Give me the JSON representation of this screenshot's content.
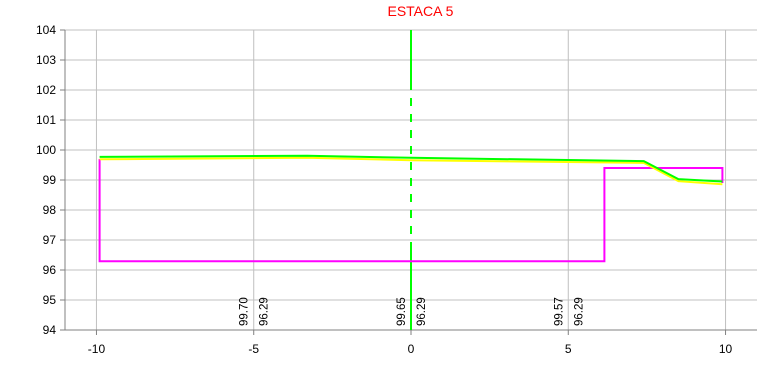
{
  "chart_data": {
    "type": "line",
    "title": "ESTACA 5",
    "title_color": "#ff0000",
    "xlim": [
      -11,
      11
    ],
    "ylim": [
      94,
      104
    ],
    "x_ticks": [
      -10,
      -5,
      0,
      5,
      10
    ],
    "x_tick_labels": [
      "-10",
      "-5",
      "0",
      "5",
      "10"
    ],
    "y_ticks": [
      94,
      95,
      96,
      97,
      98,
      99,
      100,
      101,
      102,
      103,
      104
    ],
    "y_tick_labels": [
      "94",
      "95",
      "96",
      "97",
      "98",
      "99",
      "100",
      "101",
      "102",
      "103",
      "104"
    ],
    "grid": true,
    "grid_color": "#c0c0c0",
    "centerline": {
      "x": 0,
      "color": "#00ff00"
    },
    "series": [
      {
        "color": "#ffff00",
        "x": [
          -9.9,
          -3.3,
          0,
          7.4,
          8.5,
          9.9
        ],
        "y": [
          99.69,
          99.74,
          99.66,
          99.57,
          98.96,
          98.86
        ]
      },
      {
        "color": "#00ff00",
        "x": [
          -9.9,
          -3.3,
          0,
          7.4,
          8.5,
          9.9
        ],
        "y": [
          99.77,
          99.81,
          99.74,
          99.63,
          99.03,
          98.95
        ]
      },
      {
        "color": "#ff00ff",
        "x": [
          -9.9,
          -9.9,
          6.15,
          6.15,
          9.9,
          9.9
        ],
        "y": [
          99.7,
          96.29,
          96.29,
          99.4,
          99.4,
          98.9
        ]
      }
    ],
    "vertical_labels": [
      {
        "x": -5,
        "values": [
          "99.70",
          "96.29"
        ]
      },
      {
        "x": 0,
        "values": [
          "99.65",
          "96.29"
        ]
      },
      {
        "x": 5,
        "values": [
          "99.57",
          "96.29"
        ]
      }
    ]
  }
}
